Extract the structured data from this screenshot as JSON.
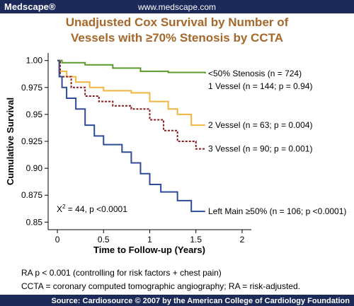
{
  "header": {
    "brand": "Medscape®",
    "url": "www.medscape.com"
  },
  "chart_data": {
    "type": "line",
    "step": true,
    "title": [
      "Unadjusted Cox Survival by Number of",
      "Vessels with ≥70% Stenosis by CCTA"
    ],
    "x_label": "Time to Follow-up (Years)",
    "y_label": "Cumulative Survival",
    "xlim": [
      -0.1,
      2.1
    ],
    "ylim": [
      0.843,
      1.007
    ],
    "xticks": [
      0,
      0.5,
      1,
      1.5,
      2
    ],
    "yticks": [
      {
        "value": 1,
        "label": "1.00"
      },
      0.975,
      0.95,
      0.925,
      {
        "value": 0.9,
        "label": "0.90"
      },
      0.875,
      0.85
    ],
    "series": [
      {
        "name": "<50% Stenosis (n = 724)",
        "color": "#5a9a2a",
        "dash": false,
        "x": [
          0,
          0.05,
          0.3,
          0.6,
          0.9,
          1.2,
          1.6
        ],
        "values": [
          1,
          0.998,
          0.996,
          0.993,
          0.99,
          0.989,
          0.988
        ]
      },
      {
        "name": "2 Vessel (n = 63; p = 0.004)",
        "color": "#f2b441",
        "dash": false,
        "x": [
          0,
          0.02,
          0.1,
          0.2,
          0.35,
          0.5,
          0.8,
          1.0,
          1.2,
          1.3,
          1.45,
          1.6
        ],
        "values": [
          1,
          0.99,
          0.985,
          0.98,
          0.975,
          0.972,
          0.97,
          0.962,
          0.955,
          0.95,
          0.94,
          0.94
        ]
      },
      {
        "name": "3 Vessel (n = 90; p = 0.001)",
        "color": "#8b1a1a",
        "dash": true,
        "x": [
          0,
          0.03,
          0.15,
          0.3,
          0.45,
          0.6,
          0.8,
          1.0,
          1.15,
          1.3,
          1.5,
          1.6
        ],
        "values": [
          1,
          0.985,
          0.975,
          0.967,
          0.962,
          0.958,
          0.955,
          0.945,
          0.935,
          0.925,
          0.918,
          0.918
        ]
      },
      {
        "name": "Left Main ≥50% (n = 106; p <0.0001)",
        "color": "#2f4a9a",
        "dash": false,
        "x": [
          0,
          0.02,
          0.05,
          0.1,
          0.2,
          0.3,
          0.4,
          0.5,
          0.7,
          0.8,
          0.9,
          1.0,
          1.12,
          1.3,
          1.45,
          1.6
        ],
        "values": [
          1,
          0.985,
          0.975,
          0.965,
          0.955,
          0.94,
          0.93,
          0.922,
          0.915,
          0.905,
          0.895,
          0.885,
          0.878,
          0.87,
          0.86,
          0.86
        ]
      }
    ],
    "annotations": [
      "1 Vessel (n = 144; p = 0.94)"
    ],
    "stat": {
      "base": "X",
      "sup": "2",
      "rest": " = 44, p <0.0001"
    }
  },
  "footnotes": [
    "RA p < 0.001 (controlling for risk factors + chest pain)",
    "CCTA = coronary computed tomographic angiography; RA = risk-adjusted."
  ],
  "source": "Source: Cardiosource © 2007 by the American College of Cardiology Foundation"
}
